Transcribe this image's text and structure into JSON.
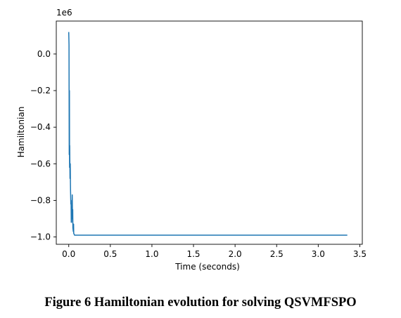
{
  "caption": "Figure 6 Hamiltonian evolution for solving QSVMFSPO",
  "chart_data": {
    "type": "line",
    "title": "",
    "xlabel": "Time (seconds)",
    "ylabel": "Hamiltonian",
    "offset_text": "1e6",
    "xlim": [
      -0.15,
      3.53
    ],
    "ylim": [
      -1.04,
      0.18
    ],
    "y_scale_factor": 1000000,
    "xticks": [
      0.0,
      0.5,
      1.0,
      1.5,
      2.0,
      2.5,
      3.0,
      3.5
    ],
    "xtick_labels": [
      "0.0",
      "0.5",
      "1.0",
      "1.5",
      "2.0",
      "2.5",
      "3.0",
      "3.5"
    ],
    "yticks": [
      0.0,
      -0.2,
      -0.4,
      -0.6,
      -0.8,
      -1.0
    ],
    "ytick_labels": [
      "0.0",
      "−0.2",
      "−0.4",
      "−0.6",
      "−0.8",
      "−1.0"
    ],
    "grid": false,
    "color": "#1f77b4",
    "series": [
      {
        "x": [
          0.0,
          0.003,
          0.006,
          0.008,
          0.01,
          0.012,
          0.015,
          0.018,
          0.02,
          0.022,
          0.025,
          0.028,
          0.03,
          0.035,
          0.04,
          0.042,
          0.045,
          0.048,
          0.05,
          0.055,
          0.058,
          0.06,
          0.065,
          0.07,
          0.08,
          0.1,
          0.3,
          0.6,
          1.0,
          1.5,
          2.0,
          2.5,
          3.0,
          3.35
        ],
        "y": [
          0.12,
          0.05,
          -0.55,
          -0.2,
          -0.62,
          -0.5,
          -0.68,
          -0.6,
          -0.7,
          -0.75,
          -0.82,
          -0.8,
          -0.92,
          -0.85,
          -0.9,
          -0.77,
          -0.92,
          -0.85,
          -0.95,
          -0.97,
          -0.93,
          -0.98,
          -0.985,
          -0.99,
          -0.99,
          -0.99,
          -0.99,
          -0.99,
          -0.99,
          -0.99,
          -0.99,
          -0.99,
          -0.99,
          -0.99
        ]
      }
    ]
  }
}
